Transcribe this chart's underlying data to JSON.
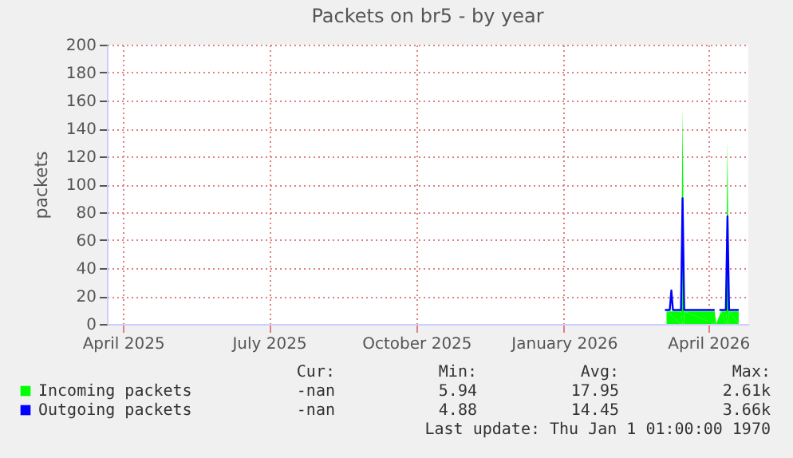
{
  "chart_data": {
    "type": "area",
    "title": "Packets on br5 - by year",
    "ylabel": "packets",
    "xlim": [
      "2025-03-22",
      "2026-04-26"
    ],
    "ylim": [
      0,
      200
    ],
    "yticks": [
      0,
      20,
      40,
      60,
      80,
      100,
      120,
      140,
      160,
      180,
      200
    ],
    "xticks": [
      {
        "value": "2025-04-01",
        "label": "April 2025"
      },
      {
        "value": "2025-07-01",
        "label": "July 2025"
      },
      {
        "value": "2025-10-01",
        "label": "October 2025"
      },
      {
        "value": "2026-01-01",
        "label": "January 2026"
      },
      {
        "value": "2026-04-01",
        "label": "April 2026"
      }
    ],
    "grid": true,
    "legend": "bottom",
    "series": [
      {
        "name": "Incoming packets",
        "type": "area",
        "color": "#00ff00",
        "x": [
          "2026-03-06",
          "2026-03-15",
          "2026-03-16",
          "2026-03-17",
          "2026-04-05",
          "2026-04-06",
          "2026-04-09",
          "2026-04-12",
          "2026-04-13",
          "2026-04-14",
          "2026-04-20"
        ],
        "values": [
          9,
          9,
          155,
          9,
          9,
          null,
          9,
          9,
          131,
          9,
          9
        ]
      },
      {
        "name": "Outgoing packets",
        "type": "line",
        "color": "#0000ff",
        "x": [
          "2026-03-05",
          "2026-03-08",
          "2026-03-09",
          "2026-03-10",
          "2026-03-15",
          "2026-03-16",
          "2026-03-17",
          "2026-04-05",
          "2026-04-06",
          "2026-04-08",
          "2026-04-12",
          "2026-04-13",
          "2026-04-14",
          "2026-04-20"
        ],
        "values": [
          10,
          10,
          24,
          10,
          10,
          90,
          10,
          10,
          null,
          10,
          10,
          77,
          10,
          10
        ]
      }
    ],
    "annotations": [
      "Cur:",
      "Min:",
      "Avg:",
      "Max:",
      "-nan",
      "5.94",
      "17.95",
      "2.61k",
      "-nan",
      "4.88",
      "14.45",
      "3.66k",
      "Last update: Thu Jan  1 01:00:00 1970"
    ]
  }
}
